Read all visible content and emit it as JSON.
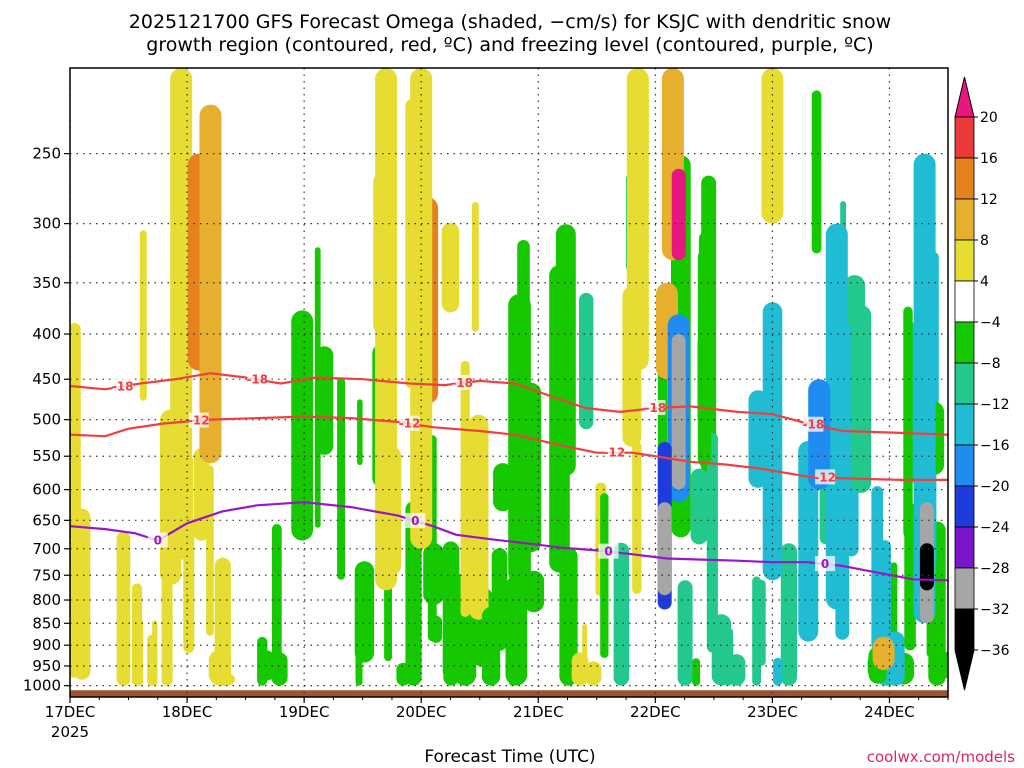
{
  "chart_data": {
    "type": "heatmap",
    "title_line1": "2025121700 GFS Forecast Omega (shaded, −cm/s) for KSJC with dendritic snow",
    "title_line2": "growth region (contoured, red, ºC) and freezing level (contoured, purple, ºC)",
    "xlabel": "Forecast Time (UTC)",
    "credit": "coolwx.com/models",
    "x_ticks": [
      "17DEC",
      "18DEC",
      "19DEC",
      "20DEC",
      "21DEC",
      "22DEC",
      "23DEC",
      "24DEC"
    ],
    "x_year": "2025",
    "x_range_days": [
      0,
      7.5
    ],
    "y_ticks": [
      250,
      300,
      350,
      400,
      450,
      500,
      550,
      600,
      650,
      700,
      750,
      800,
      850,
      900,
      950,
      1000
    ],
    "y_range_hpa": [
      200,
      1030
    ],
    "y_scale": "log-pressure",
    "grid": true,
    "colorbar": {
      "labels": [
        "20",
        "16",
        "12",
        "8",
        "4",
        "−4",
        "−8",
        "−12",
        "−16",
        "−20",
        "−24",
        "−28",
        "−32",
        "−36"
      ],
      "colors": [
        "#e8167f",
        "#ea3a3a",
        "#e6821e",
        "#e6b02e",
        "#e6dc32",
        "#ffffff",
        "#16c800",
        "#22c88c",
        "#20bcd4",
        "#1e8cf0",
        "#1e3cdc",
        "#7a16c8",
        "#a6a6a6",
        "#000000"
      ],
      "top_color": "#e8167f",
      "bottom_color": "#000000"
    },
    "contours": [
      {
        "label": "-18",
        "color": "#ee4040",
        "label_days": [
          0.45,
          1.6,
          3.35,
          5.0,
          6.35
        ],
        "points": [
          [
            0,
            458
          ],
          [
            0.3,
            462
          ],
          [
            0.6,
            455
          ],
          [
            0.9,
            450
          ],
          [
            1.2,
            443
          ],
          [
            1.5,
            448
          ],
          [
            1.8,
            455
          ],
          [
            2.1,
            448
          ],
          [
            2.5,
            450
          ],
          [
            2.9,
            455
          ],
          [
            3.2,
            457
          ],
          [
            3.5,
            452
          ],
          [
            3.8,
            455
          ],
          [
            4.1,
            470
          ],
          [
            4.4,
            485
          ],
          [
            4.7,
            490
          ],
          [
            5.0,
            485
          ],
          [
            5.3,
            483
          ],
          [
            5.7,
            490
          ],
          [
            6.0,
            493
          ],
          [
            6.3,
            505
          ],
          [
            6.6,
            515
          ],
          [
            7.0,
            517
          ],
          [
            7.5,
            520
          ]
        ]
      },
      {
        "label": "-12",
        "color": "#ee4040",
        "label_days": [
          1.1,
          2.9,
          4.65,
          6.45
        ],
        "points": [
          [
            0,
            520
          ],
          [
            0.3,
            522
          ],
          [
            0.5,
            512
          ],
          [
            0.8,
            505
          ],
          [
            1.2,
            500
          ],
          [
            1.6,
            498
          ],
          [
            2.0,
            496
          ],
          [
            2.4,
            498
          ],
          [
            2.8,
            503
          ],
          [
            3.1,
            510
          ],
          [
            3.5,
            515
          ],
          [
            3.8,
            520
          ],
          [
            4.2,
            535
          ],
          [
            4.5,
            545
          ],
          [
            4.8,
            545
          ],
          [
            5.0,
            550
          ],
          [
            5.3,
            558
          ],
          [
            5.6,
            562
          ],
          [
            5.9,
            568
          ],
          [
            6.3,
            580
          ],
          [
            6.7,
            583
          ],
          [
            7.1,
            585
          ],
          [
            7.5,
            585
          ]
        ]
      },
      {
        "label": "0",
        "color": "#9a16c8",
        "label_days": [
          0.75,
          2.95,
          4.6,
          6.45
        ],
        "points": [
          [
            0,
            660
          ],
          [
            0.3,
            665
          ],
          [
            0.55,
            672
          ],
          [
            0.75,
            685
          ],
          [
            1.0,
            655
          ],
          [
            1.3,
            635
          ],
          [
            1.6,
            625
          ],
          [
            2.0,
            620
          ],
          [
            2.4,
            628
          ],
          [
            2.8,
            642
          ],
          [
            3.1,
            660
          ],
          [
            3.3,
            675
          ],
          [
            3.6,
            683
          ],
          [
            3.9,
            690
          ],
          [
            4.2,
            698
          ],
          [
            4.5,
            703
          ],
          [
            4.8,
            710
          ],
          [
            5.1,
            718
          ],
          [
            5.4,
            720
          ],
          [
            5.7,
            722
          ],
          [
            6.0,
            725
          ],
          [
            6.3,
            725
          ],
          [
            6.6,
            732
          ],
          [
            6.9,
            745
          ],
          [
            7.2,
            758
          ],
          [
            7.5,
            760
          ]
        ]
      }
    ],
    "omega_patches": [
      {
        "day": 0.95,
        "p_top": 200,
        "p_bot": 720,
        "value": 6
      },
      {
        "day": 1.1,
        "p_top": 250,
        "p_bot": 440,
        "value": 12
      },
      {
        "day": 1.2,
        "p_top": 220,
        "p_bot": 560,
        "value": 8
      },
      {
        "day": 2.7,
        "p_top": 200,
        "p_bot": 780,
        "value": 6
      },
      {
        "day": 3.05,
        "p_top": 280,
        "p_bot": 480,
        "value": 12
      },
      {
        "day": 3.0,
        "p_top": 200,
        "p_bot": 700,
        "value": 5
      },
      {
        "day": 4.85,
        "p_top": 200,
        "p_bot": 440,
        "value": 6
      },
      {
        "day": 5.15,
        "p_top": 200,
        "p_bot": 330,
        "value": 10
      },
      {
        "day": 5.2,
        "p_top": 260,
        "p_bot": 330,
        "value": 20
      },
      {
        "day": 5.1,
        "p_top": 350,
        "p_bot": 450,
        "value": 10
      },
      {
        "day": 6.0,
        "p_top": 200,
        "p_bot": 300,
        "value": 5
      },
      {
        "day": 6.95,
        "p_top": 880,
        "p_bot": 960,
        "value": 10
      },
      {
        "day": 5.2,
        "p_top": 380,
        "p_bot": 620,
        "value": -16
      },
      {
        "day": 5.2,
        "p_top": 400,
        "p_bot": 600,
        "value": -28
      },
      {
        "day": 5.08,
        "p_top": 530,
        "p_bot": 820,
        "value": -20
      },
      {
        "day": 5.08,
        "p_top": 620,
        "p_bot": 790,
        "value": -30
      },
      {
        "day": 6.55,
        "p_top": 300,
        "p_bot": 820,
        "value": -14
      },
      {
        "day": 6.4,
        "p_top": 450,
        "p_bot": 600,
        "value": -18
      },
      {
        "day": 7.3,
        "p_top": 250,
        "p_bot": 850,
        "value": -14
      },
      {
        "day": 7.32,
        "p_top": 620,
        "p_bot": 850,
        "value": -28
      },
      {
        "day": 7.32,
        "p_top": 690,
        "p_bot": 780,
        "value": -36
      }
    ]
  }
}
